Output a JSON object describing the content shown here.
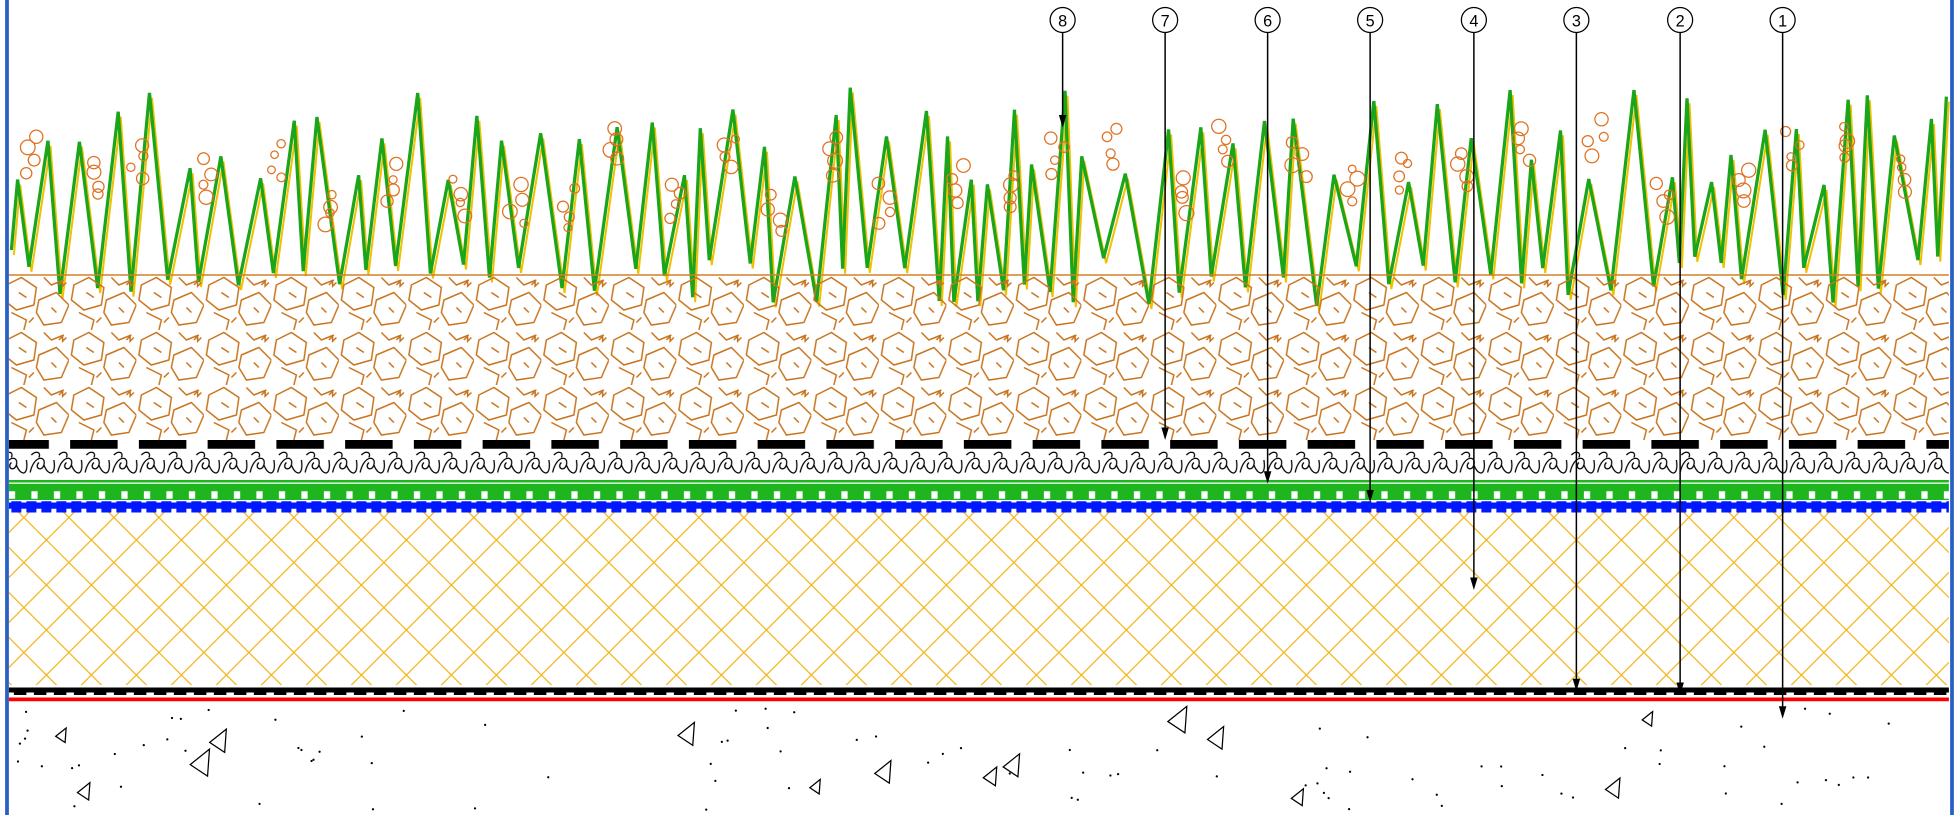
{
  "callouts": [
    {
      "label": "8"
    },
    {
      "label": "7"
    },
    {
      "label": "6"
    },
    {
      "label": "5"
    },
    {
      "label": "4"
    },
    {
      "label": "3"
    },
    {
      "label": "2"
    },
    {
      "label": "1"
    }
  ]
}
